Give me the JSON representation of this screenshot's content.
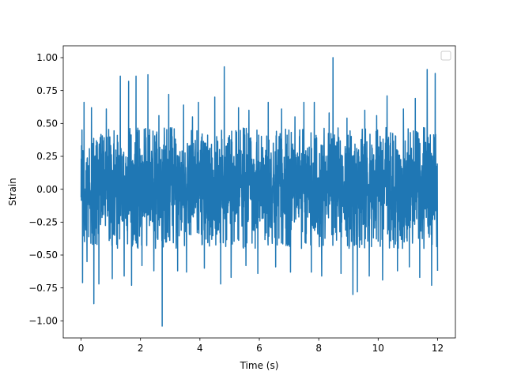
{
  "chart_data": {
    "type": "line",
    "title": "",
    "xlabel": "Time (s)",
    "ylabel": "Strain",
    "xlim": [
      -0.6,
      12.6
    ],
    "ylim": [
      -1.13,
      1.09
    ],
    "x_ticks": [
      0,
      2,
      4,
      6,
      8,
      10,
      12
    ],
    "x_tick_labels": [
      "0",
      "2",
      "4",
      "6",
      "8",
      "10",
      "12"
    ],
    "y_ticks": [
      -1.0,
      -0.75,
      -0.5,
      -0.25,
      0.0,
      0.25,
      0.5,
      0.75,
      1.0
    ],
    "y_tick_labels": [
      "−1.00",
      "−0.75",
      "−0.50",
      "−0.25",
      "0.00",
      "0.25",
      "0.50",
      "0.75",
      "1.00"
    ],
    "grid": false,
    "legend": {
      "placement": "upper right",
      "entries": []
    },
    "series": [
      {
        "color": "#1f77b4",
        "x_range": [
          0,
          12
        ],
        "typical_band": [
          -0.45,
          0.47
        ],
        "peaks": [
          [
            0.03,
            0.45
          ],
          [
            0.05,
            -0.71
          ],
          [
            0.1,
            0.66
          ],
          [
            0.2,
            -0.55
          ],
          [
            0.35,
            0.62
          ],
          [
            0.43,
            -0.87
          ],
          [
            0.6,
            0.52
          ],
          [
            0.6,
            -0.72
          ],
          [
            0.85,
            0.61
          ],
          [
            1.05,
            -0.68
          ],
          [
            1.32,
            0.86
          ],
          [
            1.45,
            -0.66
          ],
          [
            1.6,
            0.82
          ],
          [
            1.7,
            -0.73
          ],
          [
            1.85,
            0.86
          ],
          [
            2.05,
            -0.58
          ],
          [
            2.25,
            0.87
          ],
          [
            2.45,
            -0.62
          ],
          [
            2.62,
            0.56
          ],
          [
            2.73,
            -1.04
          ],
          [
            2.95,
            0.72
          ],
          [
            3.25,
            -0.62
          ],
          [
            3.45,
            0.64
          ],
          [
            3.55,
            -0.63
          ],
          [
            3.75,
            0.55
          ],
          [
            3.95,
            0.66
          ],
          [
            4.15,
            -0.6
          ],
          [
            4.5,
            0.7
          ],
          [
            4.7,
            -0.72
          ],
          [
            4.82,
            0.93
          ],
          [
            5.05,
            -0.67
          ],
          [
            5.3,
            0.62
          ],
          [
            5.55,
            -0.58
          ],
          [
            5.65,
            0.6
          ],
          [
            5.95,
            -0.64
          ],
          [
            6.3,
            0.66
          ],
          [
            6.55,
            -0.59
          ],
          [
            6.75,
            0.61
          ],
          [
            7.05,
            -0.63
          ],
          [
            7.2,
            0.55
          ],
          [
            7.5,
            0.66
          ],
          [
            7.75,
            -0.63
          ],
          [
            7.85,
            0.66
          ],
          [
            8.1,
            -0.66
          ],
          [
            8.35,
            0.58
          ],
          [
            8.48,
            1.0
          ],
          [
            8.75,
            -0.64
          ],
          [
            8.95,
            0.54
          ],
          [
            9.15,
            -0.8
          ],
          [
            9.3,
            -0.78
          ],
          [
            9.55,
            0.6
          ],
          [
            9.7,
            -0.66
          ],
          [
            9.95,
            0.56
          ],
          [
            10.15,
            -0.69
          ],
          [
            10.3,
            0.71
          ],
          [
            10.65,
            -0.62
          ],
          [
            10.85,
            0.61
          ],
          [
            11.05,
            -0.59
          ],
          [
            11.25,
            0.69
          ],
          [
            11.4,
            -0.67
          ],
          [
            11.65,
            0.91
          ],
          [
            11.8,
            -0.73
          ],
          [
            11.92,
            0.88
          ],
          [
            12.0,
            -0.62
          ]
        ]
      }
    ]
  }
}
